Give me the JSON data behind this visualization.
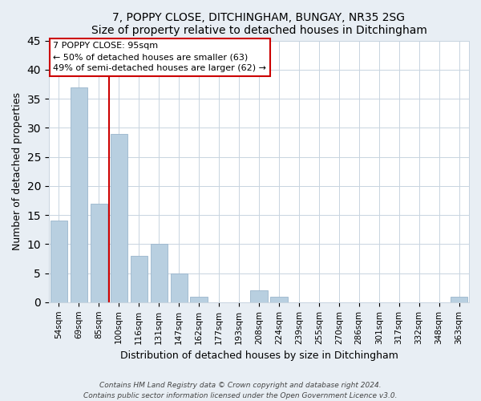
{
  "title": "7, POPPY CLOSE, DITCHINGHAM, BUNGAY, NR35 2SG",
  "subtitle": "Size of property relative to detached houses in Ditchingham",
  "xlabel": "Distribution of detached houses by size in Ditchingham",
  "ylabel": "Number of detached properties",
  "bar_color": "#b8cfe0",
  "bar_edge_color": "#9ab5cc",
  "categories": [
    "54sqm",
    "69sqm",
    "85sqm",
    "100sqm",
    "116sqm",
    "131sqm",
    "147sqm",
    "162sqm",
    "177sqm",
    "193sqm",
    "208sqm",
    "224sqm",
    "239sqm",
    "255sqm",
    "270sqm",
    "286sqm",
    "301sqm",
    "317sqm",
    "332sqm",
    "348sqm",
    "363sqm"
  ],
  "values": [
    14,
    37,
    17,
    29,
    8,
    10,
    5,
    1,
    0,
    0,
    2,
    1,
    0,
    0,
    0,
    0,
    0,
    0,
    0,
    0,
    1
  ],
  "ylim": [
    0,
    45
  ],
  "yticks": [
    0,
    5,
    10,
    15,
    20,
    25,
    30,
    35,
    40,
    45
  ],
  "vline_color": "#cc0000",
  "annotation_title": "7 POPPY CLOSE: 95sqm",
  "annotation_line1": "← 50% of detached houses are smaller (63)",
  "annotation_line2": "49% of semi-detached houses are larger (62) →",
  "footer1": "Contains HM Land Registry data © Crown copyright and database right 2024.",
  "footer2": "Contains public sector information licensed under the Open Government Licence v3.0.",
  "background_color": "#e8eef4",
  "plot_background_color": "#ffffff",
  "grid_color": "#c8d4e0"
}
